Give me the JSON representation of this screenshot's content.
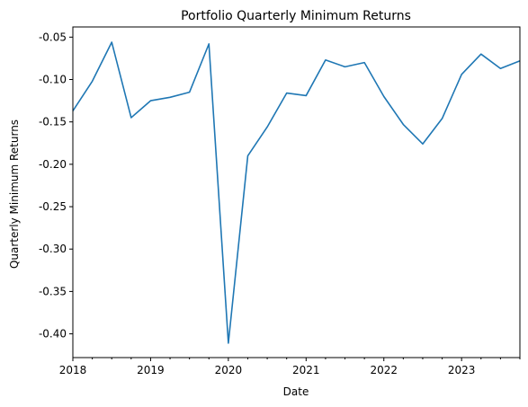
{
  "chart_data": {
    "type": "line",
    "title": "Portfolio Quarterly Minimum Returns",
    "xlabel": "Date",
    "ylabel": "Quarterly Minimum Returns",
    "grid": false,
    "legend": "none",
    "line_color": "#1f77b4",
    "x_range": [
      "2018-01",
      "2023-10"
    ],
    "y_range": [
      -0.428,
      -0.038
    ],
    "y_ticks": [
      -0.4,
      -0.35,
      -0.3,
      -0.25,
      -0.2,
      -0.15,
      -0.1,
      -0.05
    ],
    "y_tick_labels": [
      "-0.40",
      "-0.35",
      "-0.30",
      "-0.25",
      "-0.20",
      "-0.15",
      "-0.10",
      "-0.05"
    ],
    "x_major_ticks": [
      "2018-01",
      "2019-01",
      "2020-01",
      "2021-01",
      "2022-01",
      "2023-01"
    ],
    "x_tick_labels": [
      "2018",
      "2019",
      "2020",
      "2021",
      "2022",
      "2023"
    ],
    "series": [
      {
        "x": [
          "2018-01",
          "2018-04",
          "2018-07",
          "2018-10",
          "2019-01",
          "2019-04",
          "2019-07",
          "2019-10",
          "2020-01",
          "2020-04",
          "2020-07",
          "2020-10",
          "2021-01",
          "2021-04",
          "2021-07",
          "2021-10",
          "2022-01",
          "2022-04",
          "2022-07",
          "2022-10",
          "2023-01",
          "2023-04",
          "2023-07",
          "2023-10"
        ],
        "values": [
          -0.137,
          -0.102,
          -0.056,
          -0.145,
          -0.125,
          -0.121,
          -0.115,
          -0.058,
          -0.411,
          -0.19,
          -0.156,
          -0.116,
          -0.119,
          -0.077,
          -0.085,
          -0.08,
          -0.12,
          -0.153,
          -0.176,
          -0.146,
          -0.094,
          -0.07,
          -0.087,
          -0.078
        ]
      }
    ]
  }
}
